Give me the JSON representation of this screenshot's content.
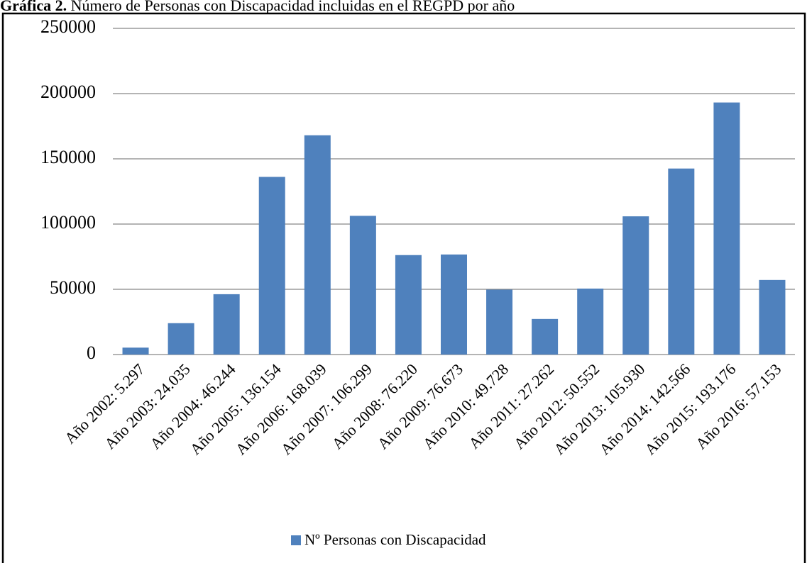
{
  "chart_data": {
    "type": "bar",
    "title_label": "Gráfica 2.",
    "title": "Número de Personas con Discapacidad incluidas en el REGPD por año",
    "categories": [
      "Año 2002:  5.297",
      "Año 2003:  24.035",
      "Año 2004: 46.244",
      "Año 2005: 136.154",
      "Año 2006: 168.039",
      "Año 2007: 106.299",
      "Año 2008: 76.220",
      "Año 2009: 76.673",
      "Año 2010: 49.728",
      "Año 2011: 27.262",
      "Año 2012: 50.552",
      "Año 2013: 105.930",
      "Año 2014: 142.566",
      "Año 2015: 193.176",
      "Año 2016: 57.153"
    ],
    "series": [
      {
        "name": "Nº Personas con Discapacidad",
        "color": "#4f81bd",
        "values": [
          5297,
          24035,
          46244,
          136154,
          168039,
          106299,
          76220,
          76673,
          49728,
          27262,
          50552,
          105930,
          142566,
          193176,
          57153
        ]
      }
    ],
    "ylim": [
      0,
      250000
    ],
    "yticks": [
      0,
      50000,
      100000,
      150000,
      200000,
      250000
    ],
    "grid": true,
    "legend": "bottom"
  }
}
